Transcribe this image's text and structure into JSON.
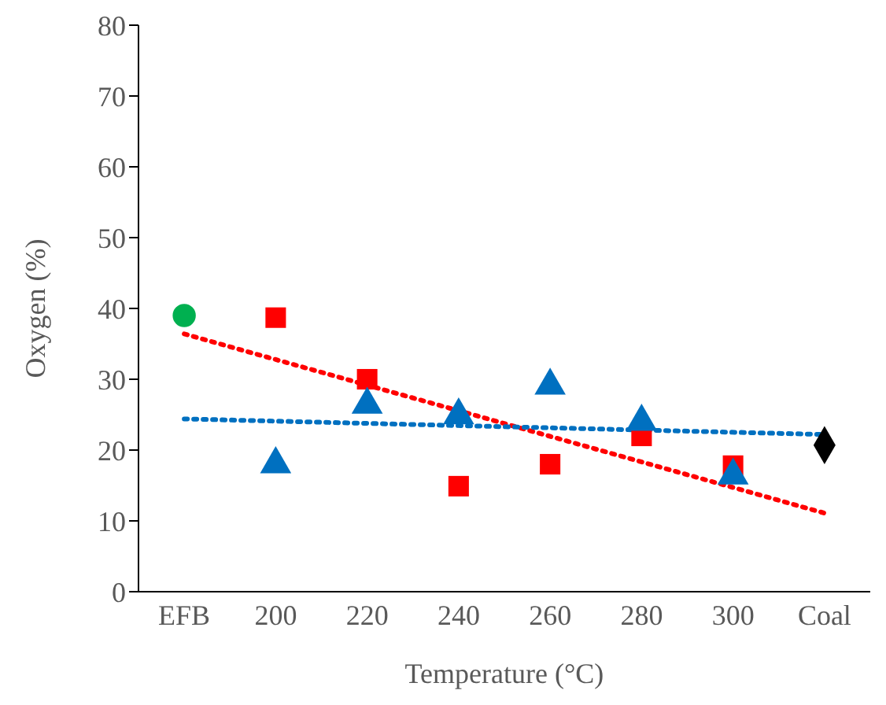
{
  "chart_data": {
    "type": "scatter",
    "xlabel": "Temperature (°C)",
    "ylabel": "Oxygen (%)",
    "categories": [
      "EFB",
      "200",
      "220",
      "240",
      "260",
      "280",
      "300",
      "Coal"
    ],
    "ylim": [
      0,
      80
    ],
    "yticks": [
      0,
      10,
      20,
      30,
      40,
      50,
      60,
      70,
      80
    ],
    "grid": false,
    "legend": false,
    "series": [
      {
        "marker": "circle",
        "color": "#00b050",
        "values": [
          39,
          null,
          null,
          null,
          null,
          null,
          null,
          null
        ]
      },
      {
        "marker": "square",
        "color": "#ff0000",
        "values": [
          null,
          38.7,
          30,
          14.9,
          18,
          22,
          17.8,
          null
        ]
      },
      {
        "marker": "triangle",
        "color": "#0070c0",
        "values": [
          null,
          18,
          26.4,
          24.9,
          29.1,
          24,
          16.4,
          null
        ]
      },
      {
        "marker": "diamond",
        "color": "#000000",
        "values": [
          null,
          null,
          null,
          null,
          null,
          null,
          null,
          20.7
        ]
      },
      {
        "type": "line",
        "marker": "none",
        "line_style": "dotted",
        "color": "#ff0000",
        "values": [
          36.4,
          null,
          null,
          null,
          null,
          null,
          null,
          11.1
        ]
      },
      {
        "type": "line",
        "marker": "none",
        "line_style": "dotted",
        "color": "#0070c0",
        "values": [
          24.4,
          null,
          null,
          null,
          null,
          null,
          null,
          22.2
        ]
      }
    ]
  }
}
